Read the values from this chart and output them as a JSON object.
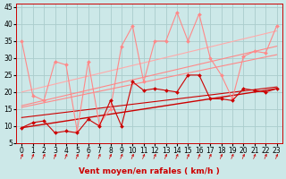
{
  "xlabel": "Vent moyen/en rafales ( km/h )",
  "xlim": [
    -0.5,
    23.5
  ],
  "ylim": [
    5,
    46
  ],
  "yticks": [
    5,
    10,
    15,
    20,
    25,
    30,
    35,
    40,
    45
  ],
  "xticks": [
    0,
    1,
    2,
    3,
    4,
    5,
    6,
    7,
    8,
    9,
    10,
    11,
    12,
    13,
    14,
    15,
    16,
    17,
    18,
    19,
    20,
    21,
    22,
    23
  ],
  "bg_color": "#cce8e8",
  "grid_color": "#aacccc",
  "trend_lines": [
    {
      "x0": 0,
      "y0": 9.5,
      "x1": 23,
      "y1": 21.0,
      "color": "#cc0000",
      "lw": 1.0
    },
    {
      "x0": 0,
      "y0": 12.5,
      "x1": 23,
      "y1": 21.5,
      "color": "#cc0000",
      "lw": 0.8
    },
    {
      "x0": 0,
      "y0": 15.5,
      "x1": 23,
      "y1": 31.0,
      "color": "#ff8888",
      "lw": 0.8
    },
    {
      "x0": 0,
      "y0": 16.0,
      "x1": 23,
      "y1": 33.5,
      "color": "#ff8888",
      "lw": 0.8
    },
    {
      "x0": 0,
      "y0": 20.0,
      "x1": 23,
      "y1": 38.0,
      "color": "#ffaaaa",
      "lw": 0.8
    }
  ],
  "series_dark": {
    "x": [
      0,
      1,
      2,
      3,
      4,
      5,
      6,
      7,
      8,
      9,
      10,
      11,
      12,
      13,
      14,
      15,
      16,
      17,
      18,
      19,
      20,
      21,
      22,
      23
    ],
    "y": [
      9.5,
      11.0,
      11.5,
      8.0,
      8.5,
      8.0,
      12.0,
      10.0,
      17.5,
      10.0,
      23.0,
      20.5,
      21.0,
      20.5,
      20.0,
      25.0,
      25.0,
      18.0,
      18.0,
      17.5,
      21.0,
      20.5,
      20.0,
      21.0
    ],
    "color": "#cc0000",
    "marker": "D",
    "markersize": 2.0,
    "lw": 0.8
  },
  "series_light": {
    "x": [
      0,
      1,
      2,
      3,
      4,
      5,
      6,
      7,
      8,
      9,
      10,
      11,
      12,
      13,
      14,
      15,
      16,
      17,
      18,
      19,
      20,
      21,
      22,
      23
    ],
    "y": [
      35.0,
      19.0,
      17.5,
      29.0,
      28.0,
      8.5,
      29.0,
      10.5,
      15.0,
      33.5,
      39.5,
      23.0,
      35.0,
      35.0,
      43.5,
      35.0,
      43.0,
      30.0,
      25.0,
      18.0,
      30.5,
      32.0,
      31.5,
      39.5
    ],
    "color": "#ff8888",
    "marker": "D",
    "markersize": 2.0,
    "lw": 0.8
  },
  "arrow_color": "#cc0000",
  "xlabel_color": "#cc0000",
  "xlabel_fontsize": 6.5,
  "tick_fontsize": 5.5
}
